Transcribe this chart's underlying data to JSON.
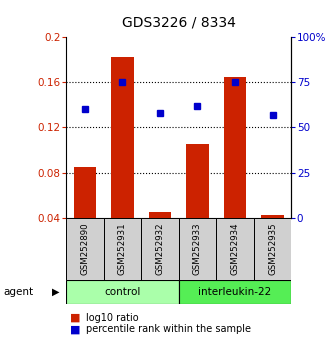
{
  "title": "GDS3226 / 8334",
  "samples": [
    "GSM252890",
    "GSM252931",
    "GSM252932",
    "GSM252933",
    "GSM252934",
    "GSM252935"
  ],
  "bar_values": [
    0.085,
    0.182,
    0.045,
    0.105,
    0.165,
    0.042
  ],
  "point_pct": [
    60,
    75,
    58,
    62,
    75,
    57
  ],
  "groups": [
    {
      "label": "control",
      "indices": [
        0,
        1,
        2
      ],
      "color": "#aaffaa"
    },
    {
      "label": "interleukin-22",
      "indices": [
        3,
        4,
        5
      ],
      "color": "#55ee55"
    }
  ],
  "bar_color": "#cc2200",
  "point_color": "#0000cc",
  "left_ylim": [
    0.04,
    0.2
  ],
  "left_yticks": [
    0.04,
    0.08,
    0.12,
    0.16,
    0.2
  ],
  "left_yticklabels": [
    "0.04",
    "0.08",
    "0.12",
    "0.16",
    "0.2"
  ],
  "right_ylim": [
    0,
    100
  ],
  "right_yticks": [
    0,
    25,
    50,
    75,
    100
  ],
  "right_yticklabels": [
    "0",
    "25",
    "50",
    "75",
    "100%"
  ],
  "grid_values": [
    0.08,
    0.12,
    0.16
  ],
  "agent_label": "agent",
  "legend_bar_label": "log10 ratio",
  "legend_point_label": "percentile rank within the sample"
}
